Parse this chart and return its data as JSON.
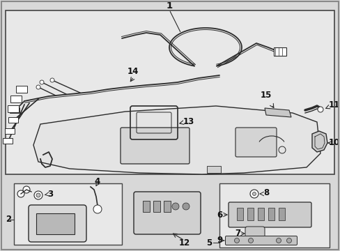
{
  "bg_color": "#d8d8d8",
  "main_box_bg": "#e8e8e8",
  "line_color": "#2a2a2a",
  "text_color": "#111111",
  "border_color": "#444444",
  "font_size": 8.5
}
